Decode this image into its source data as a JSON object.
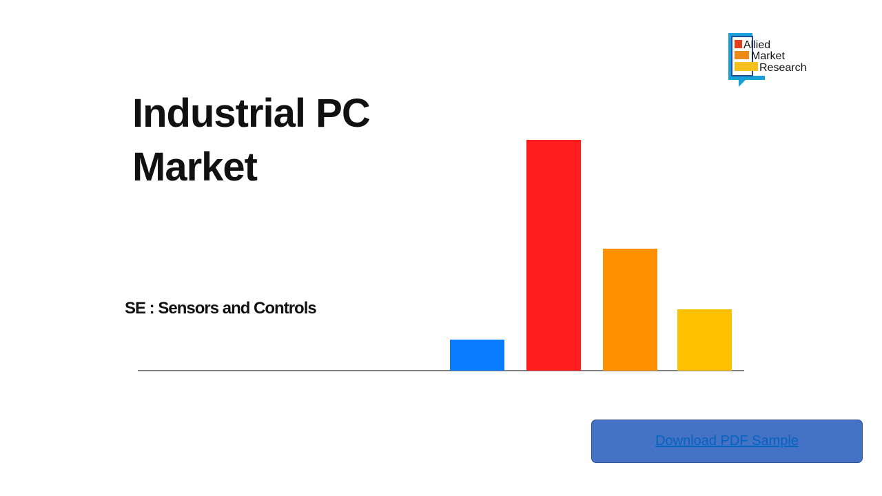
{
  "header": {
    "title": "Industrial PC Market",
    "subtitle": "SE : Sensors and Controls"
  },
  "logo": {
    "lines": [
      "Allied",
      "Market",
      "Research"
    ]
  },
  "button": {
    "label": "Download PDF Sample"
  }
}
